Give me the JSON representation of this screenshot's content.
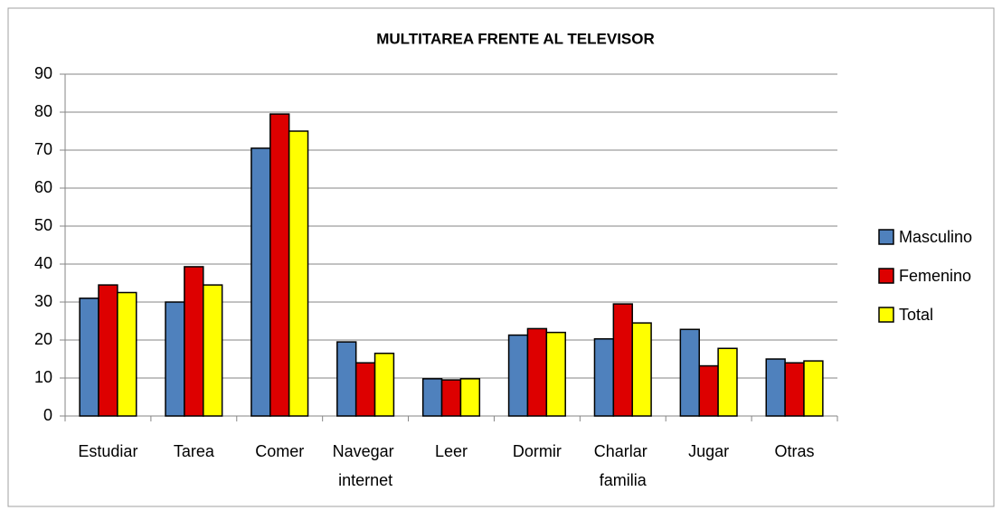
{
  "chart_data": {
    "type": "bar",
    "title": "MULTITAREA FRENTE AL TELEVISOR",
    "categories": [
      "Estudiar",
      "Tarea",
      "Comer",
      "Navegar internet",
      "Leer",
      "Dormir",
      "Charlar familia",
      "Jugar",
      "Otras"
    ],
    "series": [
      {
        "name": "Masculino",
        "color": "#4f81bd",
        "values": [
          31,
          30,
          70.5,
          19.5,
          9.8,
          21.3,
          20.3,
          22.8,
          15
        ]
      },
      {
        "name": "Femenino",
        "color": "#dd0000",
        "values": [
          34.5,
          39.3,
          79.5,
          14,
          9.5,
          23,
          29.5,
          13.2,
          14
        ]
      },
      {
        "name": "Total",
        "color": "#ffff00",
        "values": [
          32.5,
          34.5,
          75,
          16.5,
          9.8,
          22,
          24.5,
          17.8,
          14.5
        ]
      }
    ],
    "ylim": [
      0,
      90
    ],
    "yticks": [
      0,
      10,
      20,
      30,
      40,
      50,
      60,
      70,
      80,
      90
    ],
    "grid": true,
    "legend": "right"
  }
}
